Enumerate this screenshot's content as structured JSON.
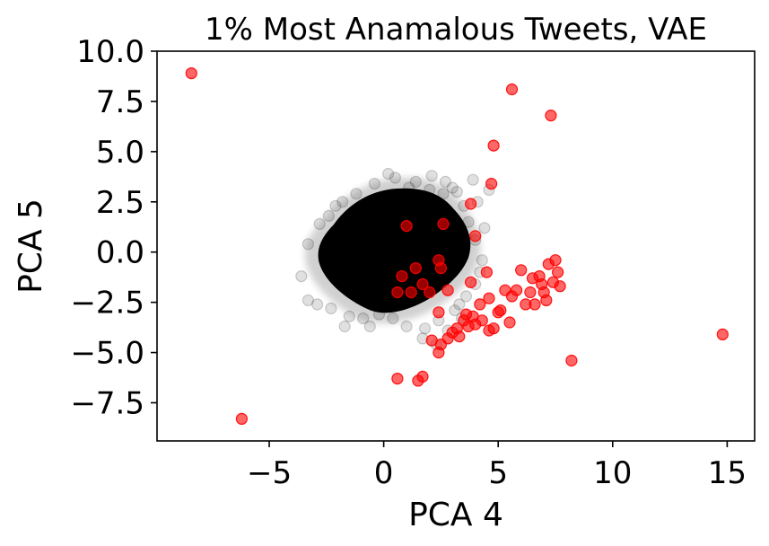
{
  "chart_data": {
    "type": "scatter",
    "title": "1% Most Anamalous Tweets, VAE",
    "xlabel": "PCA 4",
    "ylabel": "PCA 5",
    "xlim": [
      -9.9,
      16.2
    ],
    "ylim": [
      -9.4,
      10.0
    ],
    "xticks": [
      -5,
      0,
      5,
      10,
      15
    ],
    "xtick_labels": [
      "−5",
      "0",
      "5",
      "10",
      "15"
    ],
    "yticks": [
      -7.5,
      -5.0,
      -2.5,
      0.0,
      2.5,
      5.0,
      7.5,
      10.0
    ],
    "ytick_labels": [
      "−7.5",
      "−5.0",
      "−2.5",
      "0.0",
      "2.5",
      "5.0",
      "7.5",
      "10.0"
    ],
    "grid": false,
    "legend": "none",
    "series": [
      {
        "color": "#000000",
        "alpha": 0.12,
        "points": [
          [
            -3.6,
            -1.2
          ],
          [
            -3.3,
            -2.4
          ],
          [
            -2.9,
            -2.6
          ],
          [
            -2.3,
            -2.8
          ],
          [
            -1.5,
            -3.2
          ],
          [
            -0.9,
            -3.3
          ],
          [
            -0.2,
            -3.1
          ],
          [
            0.4,
            -3.3
          ],
          [
            1.0,
            -3.7
          ],
          [
            1.8,
            -3.8
          ],
          [
            2.4,
            -3.4
          ],
          [
            3.1,
            -2.9
          ],
          [
            3.6,
            -2.2
          ],
          [
            4.0,
            -1.6
          ],
          [
            4.3,
            -0.4
          ],
          [
            4.0,
            0.6
          ],
          [
            3.7,
            1.5
          ],
          [
            3.5,
            2.3
          ],
          [
            3.2,
            3.0
          ],
          [
            2.7,
            3.5
          ],
          [
            2.1,
            3.8
          ],
          [
            1.4,
            3.5
          ],
          [
            0.5,
            3.7
          ],
          [
            -0.4,
            3.4
          ],
          [
            -1.2,
            2.9
          ],
          [
            -2.1,
            2.3
          ],
          [
            -2.8,
            1.4
          ],
          [
            -3.3,
            0.4
          ],
          [
            -2.6,
            -0.4
          ],
          [
            4.4,
            1.2
          ],
          [
            3.9,
            3.6
          ],
          [
            3.0,
            3.2
          ],
          [
            0.2,
            3.9
          ],
          [
            -1.7,
            -3.7
          ],
          [
            2.3,
            -4.6
          ],
          [
            1.7,
            -4.3
          ],
          [
            4.1,
            2.5
          ],
          [
            4.6,
            3.1
          ],
          [
            3.4,
            -3.3
          ],
          [
            2.8,
            -3.9
          ],
          [
            -2.4,
            1.8
          ],
          [
            -1.8,
            2.5
          ],
          [
            1.1,
            3.2
          ],
          [
            2.6,
            2.9
          ],
          [
            3.3,
            -2.6
          ],
          [
            -0.6,
            -3.7
          ],
          [
            4.2,
            -1.0
          ],
          [
            2.0,
            3.1
          ]
        ]
      },
      {
        "color": "#ff0000",
        "alpha": 0.6,
        "points": [
          [
            -8.4,
            8.9
          ],
          [
            -6.2,
            -8.3
          ],
          [
            5.6,
            8.1
          ],
          [
            7.3,
            6.8
          ],
          [
            4.8,
            5.3
          ],
          [
            4.7,
            3.4
          ],
          [
            3.8,
            2.4
          ],
          [
            4.0,
            0.8
          ],
          [
            1.0,
            1.3
          ],
          [
            2.6,
            1.4
          ],
          [
            2.4,
            -0.4
          ],
          [
            2.5,
            -0.8
          ],
          [
            0.8,
            -1.2
          ],
          [
            1.4,
            -0.8
          ],
          [
            0.6,
            -2.0
          ],
          [
            1.2,
            -2.0
          ],
          [
            1.7,
            -1.6
          ],
          [
            2.0,
            -2.0
          ],
          [
            2.8,
            -1.9
          ],
          [
            3.8,
            -1.5
          ],
          [
            4.5,
            -1.0
          ],
          [
            4.6,
            -2.3
          ],
          [
            5.3,
            -1.9
          ],
          [
            5.8,
            -1.9
          ],
          [
            6.0,
            -0.9
          ],
          [
            6.5,
            -1.3
          ],
          [
            6.8,
            -1.2
          ],
          [
            7.2,
            -0.6
          ],
          [
            7.5,
            -0.4
          ],
          [
            7.6,
            -1.0
          ],
          [
            6.4,
            -2.0
          ],
          [
            7.0,
            -2.0
          ],
          [
            7.4,
            -1.5
          ],
          [
            6.6,
            -2.6
          ],
          [
            6.2,
            -2.6
          ],
          [
            5.6,
            -2.2
          ],
          [
            5.5,
            -3.5
          ],
          [
            5.1,
            -2.9
          ],
          [
            4.8,
            -3.8
          ],
          [
            4.6,
            -3.9
          ],
          [
            4.3,
            -3.4
          ],
          [
            3.9,
            -3.2
          ],
          [
            3.5,
            -3.4
          ],
          [
            3.2,
            -3.8
          ],
          [
            3.0,
            -4.0
          ],
          [
            2.8,
            -4.3
          ],
          [
            2.5,
            -4.6
          ],
          [
            2.4,
            -5.0
          ],
          [
            2.1,
            -4.4
          ],
          [
            2.4,
            -3.0
          ],
          [
            3.3,
            -4.2
          ],
          [
            3.6,
            -3.1
          ],
          [
            4.2,
            -2.6
          ],
          [
            5.0,
            -3.0
          ],
          [
            4.0,
            -3.6
          ],
          [
            3.7,
            -3.7
          ],
          [
            7.1,
            -2.4
          ],
          [
            6.9,
            -1.6
          ],
          [
            7.7,
            -1.7
          ],
          [
            8.2,
            -5.4
          ],
          [
            0.6,
            -6.3
          ],
          [
            1.5,
            -6.4
          ],
          [
            1.7,
            -6.2
          ],
          [
            14.8,
            -4.1
          ]
        ]
      }
    ]
  }
}
